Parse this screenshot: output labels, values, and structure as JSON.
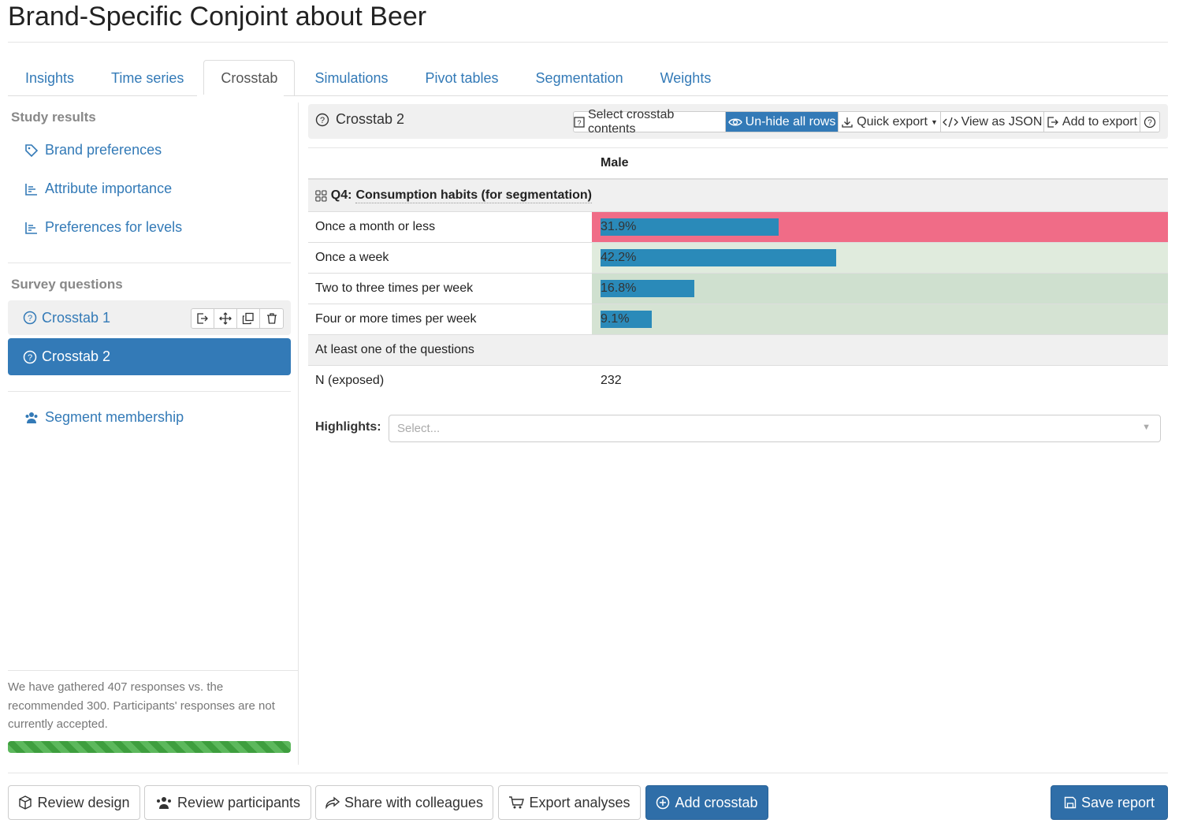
{
  "header": {
    "title": "Brand-Specific Conjoint about Beer"
  },
  "tabs": [
    "Insights",
    "Time series",
    "Crosstab",
    "Simulations",
    "Pivot tables",
    "Segmentation",
    "Weights"
  ],
  "sidebar": {
    "study_results": {
      "heading": "Study results",
      "items": [
        "Brand preferences",
        "Attribute importance",
        "Preferences for levels"
      ]
    },
    "survey_questions": {
      "heading": "Survey questions",
      "items": [
        "Crosstab 1",
        "Crosstab 2"
      ]
    },
    "segment_membership": "Segment membership",
    "status_note": "We have gathered 407 responses vs. the recommended 300. Participants' responses are not currently accepted."
  },
  "crosstab": {
    "title": "Crosstab 2",
    "toolbar": [
      "Select crosstab contents",
      "Un-hide all rows",
      "Quick export",
      "View as JSON",
      "Add to export"
    ],
    "column": "Male",
    "question_id": "Q4:",
    "question": "Consumption habits (for segmentation)",
    "bar_color": "#2a8ab9",
    "rows": [
      {
        "label": "Once a month or less",
        "value": 31.9,
        "value_label": "31.9%",
        "color": "#f06c87"
      },
      {
        "label": "Once a week",
        "value": 42.2,
        "value_label": "42.2%",
        "color": "#e0ebdd"
      },
      {
        "label": "Two to three times per week",
        "value": 16.8,
        "value_label": "16.8%",
        "color": "#cfe0cf"
      },
      {
        "label": "Four or more times per week",
        "value": 9.1,
        "value_label": "9.1%",
        "color": "#d5e3d3"
      }
    ],
    "summary_row": "At least one of the questions",
    "n_label": "N (exposed)",
    "n_value": 232,
    "highlights_label": "Highlights:",
    "highlights_placeholder": "Select..."
  },
  "footer": {
    "buttons": [
      "Review design",
      "Review participants",
      "Share with colleagues",
      "Export analyses",
      "Add crosstab"
    ],
    "save": "Save report"
  }
}
